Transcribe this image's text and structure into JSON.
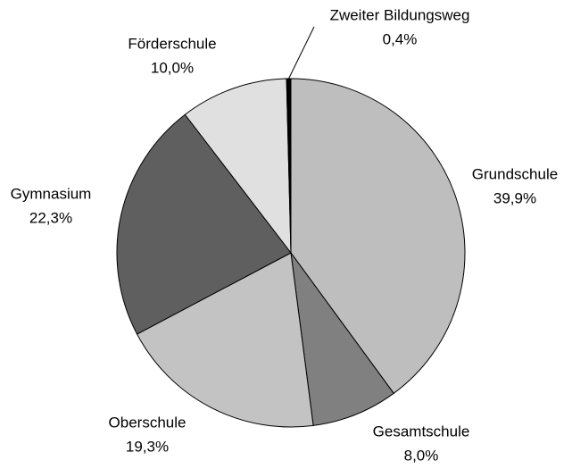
{
  "chart_data": {
    "type": "pie",
    "categories": [
      "Grundschule",
      "Gesamtschule",
      "Oberschule",
      "Gymnasium",
      "Förderschule",
      "Zweiter Bildungsweg"
    ],
    "values": [
      39.9,
      8.0,
      19.3,
      22.3,
      10.0,
      0.4
    ],
    "value_labels": [
      "39,9%",
      "8,0%",
      "19,3%",
      "22,3%",
      "10,0%",
      "0,4%"
    ],
    "colors": [
      "#bebebe",
      "#808080",
      "#c3c3c3",
      "#5f5f5f",
      "#e0e0e0",
      "#000000"
    ]
  }
}
